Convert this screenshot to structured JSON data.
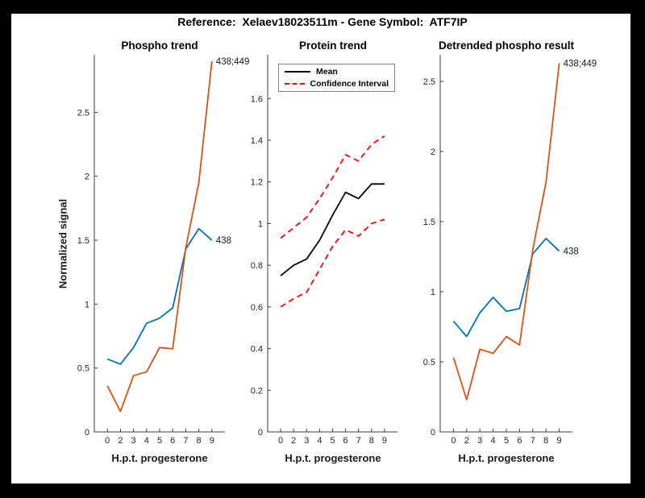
{
  "figure": {
    "title": "Reference:  Xelaev18023511m - Gene Symbol:  ATF7IP",
    "background_color": "#ffffff",
    "frame_color": "#000000",
    "axis_color": "#3c3c3c"
  },
  "legend": {
    "position": "top-left of Protein trend panel",
    "items": [
      {
        "label": "Mean",
        "color": "#000000",
        "style": "solid"
      },
      {
        "label": "Confidence Interval",
        "color": "#ff0000",
        "style": "dashed"
      }
    ]
  },
  "chart_data": [
    {
      "type": "line",
      "title": "Phospho trend",
      "xlabel": "H.p.t. progesterone",
      "ylabel": "Normalized signal",
      "x_tick_labels": [
        "0",
        "2",
        "3",
        "4",
        "5",
        "6",
        "7",
        "8",
        "9"
      ],
      "ylim": [
        0,
        2.95
      ],
      "yticks": [
        0,
        0.5,
        1,
        1.5,
        2,
        2.5
      ],
      "ytick_labels": [
        "0",
        "0.5",
        "1",
        "1.5",
        "2",
        "2.5"
      ],
      "grid": "off",
      "series": [
        {
          "name": "phospho-438",
          "end_label": "438",
          "color": "#0072BD",
          "style": "solid",
          "values": [
            0.57,
            0.53,
            0.66,
            0.85,
            0.89,
            0.97,
            1.43,
            1.59,
            1.5
          ]
        },
        {
          "name": "phospho-438-449",
          "end_label": "438;449",
          "color": "#D95319",
          "style": "solid",
          "values": [
            0.36,
            0.16,
            0.44,
            0.47,
            0.66,
            0.65,
            1.44,
            1.95,
            2.9
          ]
        }
      ]
    },
    {
      "type": "line",
      "title": "Protein trend",
      "xlabel": "H.p.t. progesterone",
      "ylabel": "",
      "x_tick_labels": [
        "0",
        "2",
        "3",
        "4",
        "5",
        "6",
        "7",
        "8",
        "9"
      ],
      "ylim": [
        0,
        1.81
      ],
      "yticks": [
        0,
        0.2,
        0.4,
        0.6,
        0.8,
        1,
        1.2,
        1.4,
        1.6
      ],
      "ytick_labels": [
        "0",
        "0.2",
        "0.4",
        "0.6",
        "0.8",
        "1",
        "1.2",
        "1.4",
        "1.6"
      ],
      "grid": "off",
      "legend_entries": [
        "Mean",
        "Confidence Interval"
      ],
      "series": [
        {
          "name": "protein-mean",
          "label": "Mean",
          "color": "#000000",
          "style": "solid",
          "values": [
            0.75,
            0.8,
            0.83,
            0.92,
            1.04,
            1.15,
            1.12,
            1.19,
            1.19
          ]
        },
        {
          "name": "protein-ci-upper",
          "label": "Confidence Interval",
          "color": "#ff0000",
          "style": "dashed",
          "values": [
            0.93,
            0.98,
            1.03,
            1.12,
            1.22,
            1.33,
            1.3,
            1.38,
            1.42
          ]
        },
        {
          "name": "protein-ci-lower",
          "label": "Confidence Interval",
          "color": "#ff0000",
          "style": "dashed",
          "values": [
            0.6,
            0.64,
            0.67,
            0.78,
            0.89,
            0.97,
            0.94,
            1.0,
            1.02
          ]
        }
      ]
    },
    {
      "type": "line",
      "title": "Detrended phospho result",
      "xlabel": "H.p.t. progesterone",
      "ylabel": "",
      "x_tick_labels": [
        "0",
        "2",
        "3",
        "4",
        "5",
        "6",
        "7",
        "8",
        "9"
      ],
      "ylim": [
        0,
        2.69
      ],
      "yticks": [
        0,
        0.5,
        1,
        1.5,
        2,
        2.5
      ],
      "ytick_labels": [
        "0",
        "0.5",
        "1",
        "1.5",
        "2",
        "2.5"
      ],
      "grid": "off",
      "series": [
        {
          "name": "detrended-438",
          "end_label": "438",
          "color": "#0072BD",
          "style": "solid",
          "values": [
            0.79,
            0.68,
            0.85,
            0.96,
            0.86,
            0.88,
            1.27,
            1.38,
            1.29
          ]
        },
        {
          "name": "detrended-438-449",
          "end_label": "438;449",
          "color": "#D95319",
          "style": "solid",
          "values": [
            0.53,
            0.23,
            0.59,
            0.56,
            0.68,
            0.62,
            1.3,
            1.78,
            2.63
          ]
        }
      ]
    }
  ]
}
